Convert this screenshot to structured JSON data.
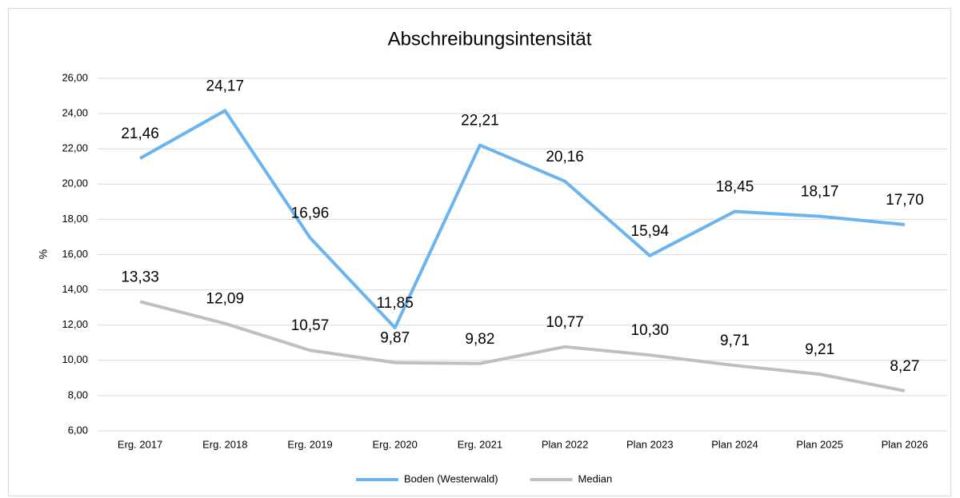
{
  "chart_data": {
    "type": "line",
    "title": "Abschreibungsintensität",
    "y_label": "%",
    "categories": [
      "Erg. 2017",
      "Erg. 2018",
      "Erg. 2019",
      "Erg. 2020",
      "Erg. 2021",
      "Plan 2022",
      "Plan 2023",
      "Plan 2024",
      "Plan 2025",
      "Plan 2026"
    ],
    "series": [
      {
        "name": "Boden (Westerwald)",
        "color": "#6cb4ee",
        "values": [
          21.46,
          24.17,
          16.96,
          11.85,
          22.21,
          20.16,
          15.94,
          18.45,
          18.17,
          17.7
        ],
        "value_labels": [
          "21,46",
          "24,17",
          "16,96",
          "11,85",
          "22,21",
          "20,16",
          "15,94",
          "18,45",
          "18,17",
          "17,70"
        ]
      },
      {
        "name": "Median",
        "color": "#bfbfbf",
        "values": [
          13.33,
          12.09,
          10.57,
          9.87,
          9.82,
          10.77,
          10.3,
          9.71,
          9.21,
          8.27
        ],
        "value_labels": [
          "13,33",
          "12,09",
          "10,57",
          "9,87",
          "9,82",
          "10,77",
          "10,30",
          "9,71",
          "9,21",
          "8,27"
        ]
      }
    ],
    "ylim": [
      6,
      26
    ],
    "yticks": [
      {
        "value": 6,
        "label": "6,00"
      },
      {
        "value": 8,
        "label": "8,00"
      },
      {
        "value": 10,
        "label": "10,00"
      },
      {
        "value": 12,
        "label": "12,00"
      },
      {
        "value": 14,
        "label": "14,00"
      },
      {
        "value": 16,
        "label": "16,00"
      },
      {
        "value": 18,
        "label": "18,00"
      },
      {
        "value": 20,
        "label": "20,00"
      },
      {
        "value": 22,
        "label": "22,00"
      },
      {
        "value": 24,
        "label": "24,00"
      },
      {
        "value": 26,
        "label": "26,00"
      }
    ],
    "grid": true,
    "legend": "bottom"
  }
}
